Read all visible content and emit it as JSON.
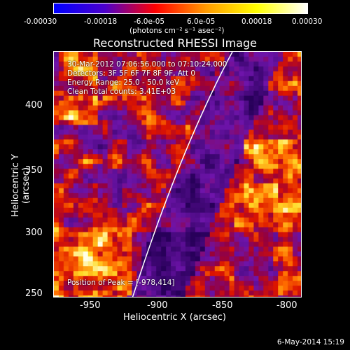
{
  "colorbar": {
    "ticks": [
      "-0.00030",
      "-0.00018",
      "-6.0e-05",
      "6.0e-05",
      "0.00018",
      "0.00030"
    ],
    "unit": "(photons cm⁻² s⁻¹ asec⁻²)",
    "colors": [
      "#0000ff",
      "#4b00cc",
      "#ff0000",
      "#ff9a00",
      "#ffff00",
      "#ffffff"
    ]
  },
  "title": "Reconstructed RHESSI Image",
  "info": {
    "time_range": "30-Mar-2012 07:06:56.000 to 07:10:24.000",
    "detectors": "Detectors: 3F 5F 6F 7F 8F 9F, Att 0",
    "energy": "Energy Range: 25.0 - 50.0 keV",
    "algorithm": "Clean   Total counts: 3.41E+03",
    "peak": "Position of Peak = [-978,414]"
  },
  "axes": {
    "xlabel": "Heliocentric X (arcsec)",
    "ylabel": "Heliocentric Y (arcsec)",
    "xticks": [
      "-950",
      "-900",
      "-850",
      "-800"
    ],
    "yticks": [
      "400",
      "350",
      "300",
      "250"
    ],
    "xlim": [
      -987,
      -795
    ],
    "ylim": [
      246,
      435
    ]
  },
  "footer": {
    "date": "6-May-2014 15:19"
  }
}
